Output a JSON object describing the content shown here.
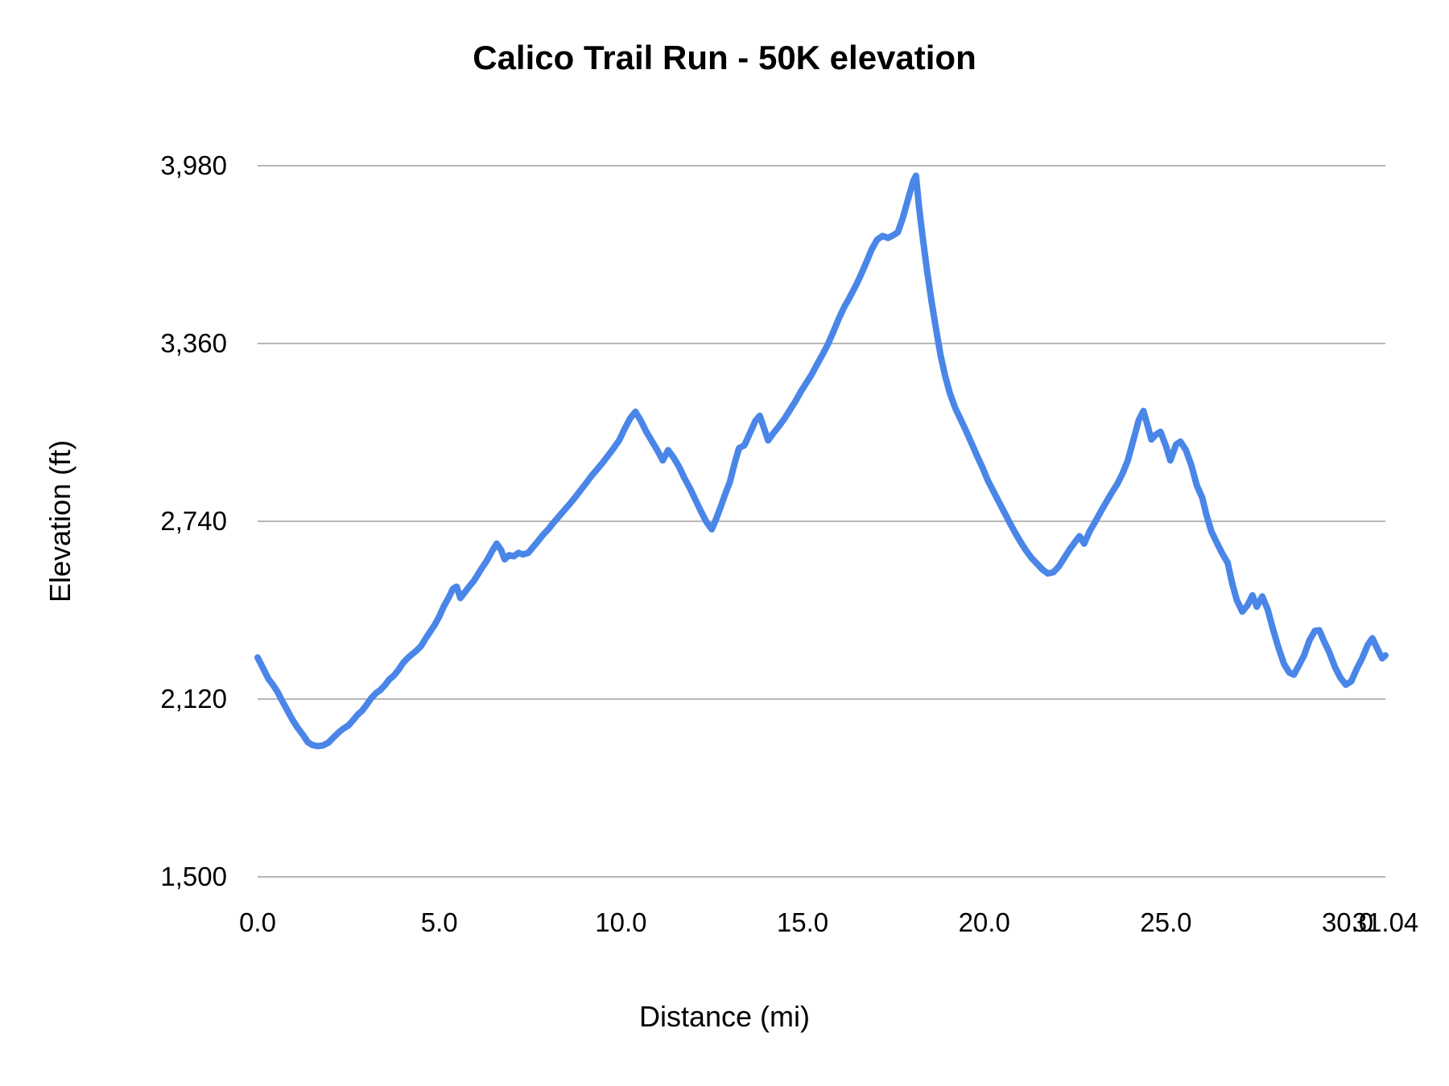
{
  "chart_data": {
    "type": "line",
    "title": "Calico Trail Run - 50K elevation",
    "xlabel": "Distance (mi)",
    "ylabel": "Elevation (ft)",
    "xlim": [
      0,
      31.04
    ],
    "ylim": [
      1500,
      3980
    ],
    "grid": true,
    "legend_position": "none",
    "line_color": "#4a86e8",
    "grid_color": "#b7b7b7",
    "text_color": "#000000",
    "background_color": "#ffffff",
    "x_ticks": [
      {
        "value": 0,
        "label": "0.0"
      },
      {
        "value": 5,
        "label": "5.0"
      },
      {
        "value": 10,
        "label": "10.0"
      },
      {
        "value": 15,
        "label": "15.0"
      },
      {
        "value": 20,
        "label": "20.0"
      },
      {
        "value": 25,
        "label": "25.0"
      },
      {
        "value": 30,
        "label": "30.0"
      },
      {
        "value": 31.04,
        "label": "31.04"
      }
    ],
    "y_ticks": [
      {
        "value": 1500,
        "label": "1,500"
      },
      {
        "value": 2120,
        "label": "2,120"
      },
      {
        "value": 2740,
        "label": "2,740"
      },
      {
        "value": 3360,
        "label": "3,360"
      },
      {
        "value": 3980,
        "label": "3,980"
      }
    ],
    "series": [
      {
        "points": [
          [
            0.0,
            2265
          ],
          [
            0.1,
            2240
          ],
          [
            0.2,
            2215
          ],
          [
            0.3,
            2190
          ],
          [
            0.42,
            2170
          ],
          [
            0.55,
            2145
          ],
          [
            0.65,
            2120
          ],
          [
            0.8,
            2085
          ],
          [
            0.95,
            2050
          ],
          [
            1.1,
            2020
          ],
          [
            1.25,
            1995
          ],
          [
            1.38,
            1970
          ],
          [
            1.5,
            1960
          ],
          [
            1.65,
            1956
          ],
          [
            1.8,
            1958
          ],
          [
            1.95,
            1968
          ],
          [
            2.1,
            1988
          ],
          [
            2.25,
            2006
          ],
          [
            2.4,
            2020
          ],
          [
            2.5,
            2028
          ],
          [
            2.62,
            2045
          ],
          [
            2.75,
            2065
          ],
          [
            2.88,
            2080
          ],
          [
            3.0,
            2100
          ],
          [
            3.12,
            2122
          ],
          [
            3.25,
            2140
          ],
          [
            3.38,
            2152
          ],
          [
            3.5,
            2168
          ],
          [
            3.62,
            2188
          ],
          [
            3.75,
            2202
          ],
          [
            3.88,
            2222
          ],
          [
            4.0,
            2245
          ],
          [
            4.12,
            2262
          ],
          [
            4.25,
            2276
          ],
          [
            4.38,
            2290
          ],
          [
            4.5,
            2305
          ],
          [
            4.62,
            2330
          ],
          [
            4.75,
            2355
          ],
          [
            4.88,
            2380
          ],
          [
            5.0,
            2408
          ],
          [
            5.12,
            2442
          ],
          [
            5.25,
            2472
          ],
          [
            5.38,
            2505
          ],
          [
            5.48,
            2512
          ],
          [
            5.58,
            2472
          ],
          [
            5.7,
            2492
          ],
          [
            5.82,
            2512
          ],
          [
            5.95,
            2532
          ],
          [
            6.08,
            2558
          ],
          [
            6.2,
            2582
          ],
          [
            6.32,
            2605
          ],
          [
            6.45,
            2635
          ],
          [
            6.58,
            2662
          ],
          [
            6.7,
            2640
          ],
          [
            6.8,
            2607
          ],
          [
            6.92,
            2622
          ],
          [
            7.05,
            2618
          ],
          [
            7.18,
            2630
          ],
          [
            7.3,
            2624
          ],
          [
            7.45,
            2630
          ],
          [
            7.58,
            2650
          ],
          [
            7.7,
            2668
          ],
          [
            7.85,
            2692
          ],
          [
            8.0,
            2712
          ],
          [
            8.15,
            2736
          ],
          [
            8.3,
            2758
          ],
          [
            8.45,
            2780
          ],
          [
            8.6,
            2802
          ],
          [
            8.75,
            2825
          ],
          [
            8.9,
            2850
          ],
          [
            9.05,
            2875
          ],
          [
            9.2,
            2900
          ],
          [
            9.35,
            2922
          ],
          [
            9.5,
            2945
          ],
          [
            9.65,
            2970
          ],
          [
            9.8,
            2995
          ],
          [
            9.95,
            3022
          ],
          [
            10.1,
            3062
          ],
          [
            10.25,
            3098
          ],
          [
            10.4,
            3122
          ],
          [
            10.55,
            3090
          ],
          [
            10.7,
            3052
          ],
          [
            10.85,
            3020
          ],
          [
            11.0,
            2988
          ],
          [
            11.15,
            2952
          ],
          [
            11.3,
            2988
          ],
          [
            11.45,
            2962
          ],
          [
            11.6,
            2930
          ],
          [
            11.75,
            2890
          ],
          [
            11.9,
            2855
          ],
          [
            12.05,
            2815
          ],
          [
            12.2,
            2775
          ],
          [
            12.35,
            2738
          ],
          [
            12.5,
            2712
          ],
          [
            12.62,
            2748
          ],
          [
            12.75,
            2792
          ],
          [
            12.88,
            2838
          ],
          [
            13.0,
            2878
          ],
          [
            13.12,
            2938
          ],
          [
            13.25,
            2995
          ],
          [
            13.4,
            3005
          ],
          [
            13.55,
            3048
          ],
          [
            13.7,
            3090
          ],
          [
            13.82,
            3108
          ],
          [
            13.95,
            3060
          ],
          [
            14.05,
            3022
          ],
          [
            14.2,
            3048
          ],
          [
            14.35,
            3072
          ],
          [
            14.5,
            3098
          ],
          [
            14.65,
            3128
          ],
          [
            14.8,
            3158
          ],
          [
            14.95,
            3192
          ],
          [
            15.1,
            3222
          ],
          [
            15.25,
            3252
          ],
          [
            15.4,
            3288
          ],
          [
            15.55,
            3322
          ],
          [
            15.7,
            3358
          ],
          [
            15.85,
            3402
          ],
          [
            16.0,
            3448
          ],
          [
            16.15,
            3488
          ],
          [
            16.3,
            3522
          ],
          [
            16.45,
            3558
          ],
          [
            16.6,
            3598
          ],
          [
            16.75,
            3642
          ],
          [
            16.9,
            3688
          ],
          [
            17.05,
            3722
          ],
          [
            17.2,
            3735
          ],
          [
            17.35,
            3728
          ],
          [
            17.5,
            3738
          ],
          [
            17.62,
            3748
          ],
          [
            17.75,
            3795
          ],
          [
            17.9,
            3862
          ],
          [
            18.05,
            3928
          ],
          [
            18.12,
            3945
          ],
          [
            18.2,
            3840
          ],
          [
            18.3,
            3735
          ],
          [
            18.42,
            3618
          ],
          [
            18.55,
            3505
          ],
          [
            18.68,
            3405
          ],
          [
            18.8,
            3318
          ],
          [
            18.92,
            3248
          ],
          [
            19.05,
            3188
          ],
          [
            19.2,
            3135
          ],
          [
            19.35,
            3095
          ],
          [
            19.5,
            3055
          ],
          [
            19.65,
            3012
          ],
          [
            19.8,
            2968
          ],
          [
            19.95,
            2928
          ],
          [
            20.1,
            2882
          ],
          [
            20.25,
            2845
          ],
          [
            20.4,
            2808
          ],
          [
            20.55,
            2772
          ],
          [
            20.7,
            2735
          ],
          [
            20.85,
            2700
          ],
          [
            21.0,
            2668
          ],
          [
            21.15,
            2638
          ],
          [
            21.3,
            2612
          ],
          [
            21.45,
            2592
          ],
          [
            21.6,
            2572
          ],
          [
            21.75,
            2558
          ],
          [
            21.9,
            2562
          ],
          [
            22.05,
            2582
          ],
          [
            22.2,
            2612
          ],
          [
            22.35,
            2642
          ],
          [
            22.5,
            2668
          ],
          [
            22.62,
            2688
          ],
          [
            22.75,
            2662
          ],
          [
            22.9,
            2705
          ],
          [
            23.05,
            2738
          ],
          [
            23.2,
            2772
          ],
          [
            23.35,
            2805
          ],
          [
            23.5,
            2838
          ],
          [
            23.65,
            2868
          ],
          [
            23.8,
            2905
          ],
          [
            23.95,
            2952
          ],
          [
            24.1,
            3022
          ],
          [
            24.25,
            3092
          ],
          [
            24.38,
            3125
          ],
          [
            24.5,
            3072
          ],
          [
            24.6,
            3025
          ],
          [
            24.72,
            3042
          ],
          [
            24.85,
            3052
          ],
          [
            25.0,
            3002
          ],
          [
            25.12,
            2952
          ],
          [
            25.28,
            3008
          ],
          [
            25.4,
            3018
          ],
          [
            25.55,
            2988
          ],
          [
            25.7,
            2935
          ],
          [
            25.85,
            2865
          ],
          [
            26.0,
            2822
          ],
          [
            26.12,
            2760
          ],
          [
            26.25,
            2705
          ],
          [
            26.4,
            2665
          ],
          [
            26.55,
            2628
          ],
          [
            26.7,
            2595
          ],
          [
            26.82,
            2525
          ],
          [
            26.95,
            2465
          ],
          [
            27.1,
            2425
          ],
          [
            27.25,
            2448
          ],
          [
            27.38,
            2482
          ],
          [
            27.5,
            2442
          ],
          [
            27.65,
            2478
          ],
          [
            27.8,
            2432
          ],
          [
            27.95,
            2362
          ],
          [
            28.1,
            2298
          ],
          [
            28.25,
            2242
          ],
          [
            28.4,
            2212
          ],
          [
            28.52,
            2205
          ],
          [
            28.65,
            2235
          ],
          [
            28.8,
            2272
          ],
          [
            28.95,
            2325
          ],
          [
            29.1,
            2358
          ],
          [
            29.22,
            2360
          ],
          [
            29.35,
            2322
          ],
          [
            29.5,
            2282
          ],
          [
            29.65,
            2232
          ],
          [
            29.8,
            2195
          ],
          [
            29.95,
            2170
          ],
          [
            30.1,
            2182
          ],
          [
            30.25,
            2225
          ],
          [
            30.4,
            2262
          ],
          [
            30.55,
            2308
          ],
          [
            30.68,
            2332
          ],
          [
            30.82,
            2295
          ],
          [
            30.95,
            2262
          ],
          [
            31.04,
            2272
          ]
        ]
      }
    ]
  }
}
